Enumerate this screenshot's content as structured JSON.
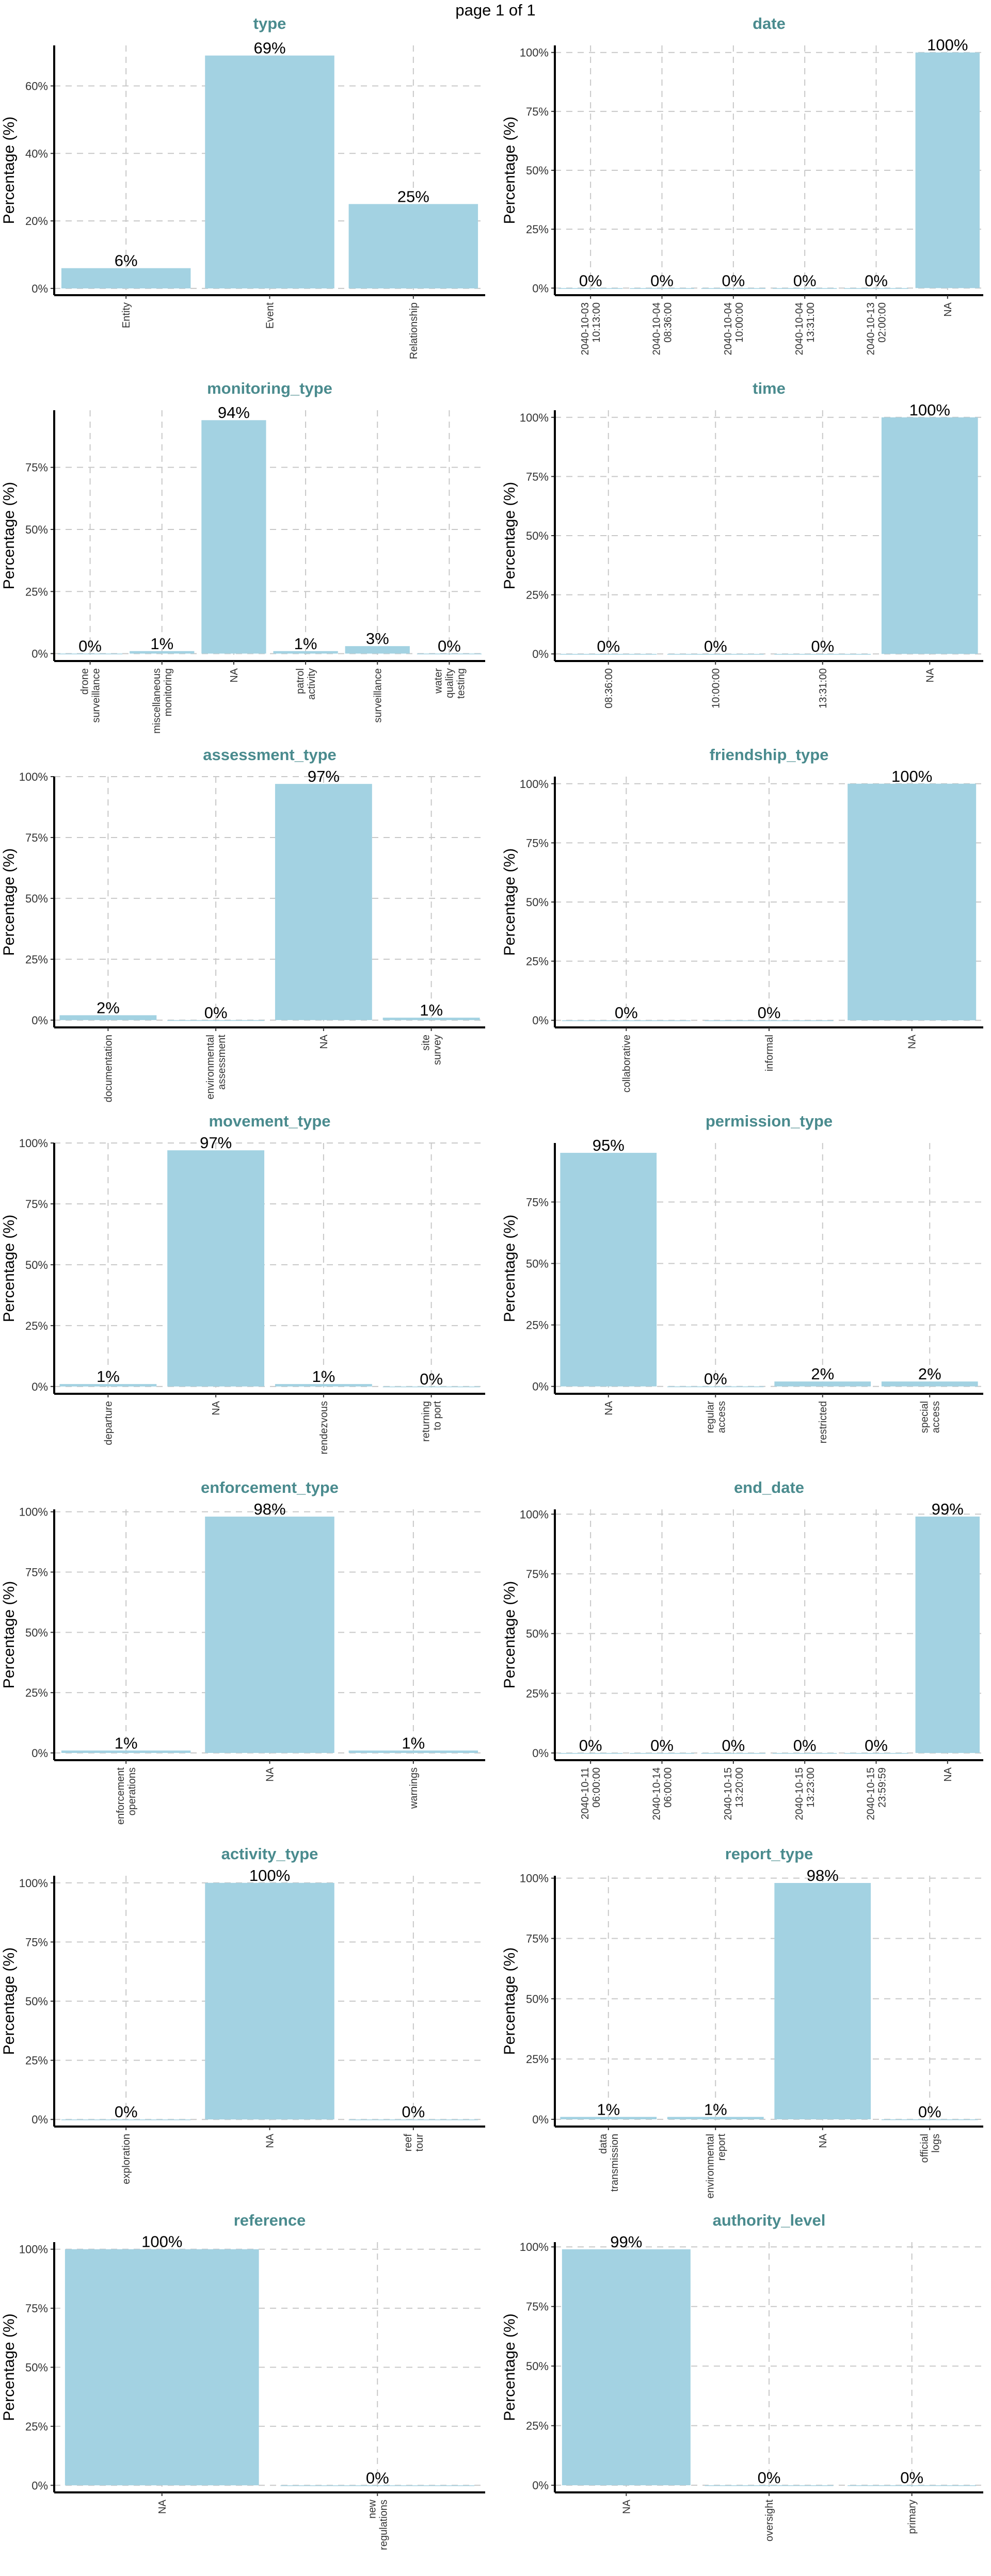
{
  "page_header": "page 1 of 1",
  "style": {
    "bar_color": "#a3d2e2",
    "title_color": "#4a8b8e",
    "grid_color": "#c8c8c8",
    "axis_color": "#000000"
  },
  "chart_data": [
    {
      "type": "bar",
      "title": "type",
      "ylabel": "Percentage (%)",
      "categories": [
        "Entity",
        "Event",
        "Relationship"
      ],
      "values": [
        6,
        69,
        25
      ],
      "labels": [
        "6%",
        "69%",
        "25%"
      ],
      "yticks": [
        0,
        20,
        40,
        60
      ],
      "ytick_labels": [
        "0%",
        "20%",
        "40%",
        "60%"
      ],
      "ylim": [
        -2,
        72
      ]
    },
    {
      "type": "bar",
      "title": "date",
      "ylabel": "Percentage (%)",
      "categories": [
        "2040-10-03\n10:13:00",
        "2040-10-04\n08:36:00",
        "2040-10-04\n10:00:00",
        "2040-10-04\n13:31:00",
        "2040-10-13\n02:00:00",
        "NA"
      ],
      "values": [
        0,
        0,
        0,
        0,
        0,
        100
      ],
      "labels": [
        "0%",
        "0%",
        "0%",
        "0%",
        "0%",
        "100%"
      ],
      "yticks": [
        0,
        25,
        50,
        75,
        100
      ],
      "ytick_labels": [
        "0%",
        "25%",
        "50%",
        "75%",
        "100%"
      ],
      "ylim": [
        -3,
        103
      ]
    },
    {
      "type": "bar",
      "title": "monitoring_type",
      "ylabel": "Percentage (%)",
      "categories": [
        "drone\nsurveillance",
        "miscellaneous\nmonitoring",
        "NA",
        "patrol\nactivity",
        "surveillance",
        "water\nquality\ntesting"
      ],
      "values": [
        0,
        1,
        94,
        1,
        3,
        0
      ],
      "labels": [
        "0%",
        "1%",
        "94%",
        "1%",
        "3%",
        "0%"
      ],
      "yticks": [
        0,
        25,
        50,
        75
      ],
      "ytick_labels": [
        "0%",
        "25%",
        "50%",
        "75%"
      ],
      "ylim": [
        -3,
        98
      ]
    },
    {
      "type": "bar",
      "title": "time",
      "ylabel": "Percentage (%)",
      "categories": [
        "08:36:00",
        "10:00:00",
        "13:31:00",
        "NA"
      ],
      "values": [
        0,
        0,
        0,
        100
      ],
      "labels": [
        "0%",
        "0%",
        "0%",
        "100%"
      ],
      "yticks": [
        0,
        25,
        50,
        75,
        100
      ],
      "ytick_labels": [
        "0%",
        "25%",
        "50%",
        "75%",
        "100%"
      ],
      "ylim": [
        -3,
        103
      ]
    },
    {
      "type": "bar",
      "title": "assessment_type",
      "ylabel": "Percentage (%)",
      "categories": [
        "documentation",
        "environmental\nassessment",
        "NA",
        "site\nsurvey"
      ],
      "values": [
        2,
        0,
        97,
        1
      ],
      "labels": [
        "2%",
        "0%",
        "97%",
        "1%"
      ],
      "yticks": [
        0,
        25,
        50,
        75,
        100
      ],
      "ytick_labels": [
        "0%",
        "25%",
        "50%",
        "75%",
        "100%"
      ],
      "ylim": [
        -3,
        100
      ]
    },
    {
      "type": "bar",
      "title": "friendship_type",
      "ylabel": "Percentage (%)",
      "categories": [
        "collaborative",
        "informal",
        "NA"
      ],
      "values": [
        0,
        0,
        100
      ],
      "labels": [
        "0%",
        "0%",
        "100%"
      ],
      "yticks": [
        0,
        25,
        50,
        75,
        100
      ],
      "ytick_labels": [
        "0%",
        "25%",
        "50%",
        "75%",
        "100%"
      ],
      "ylim": [
        -3,
        103
      ]
    },
    {
      "type": "bar",
      "title": "movement_type",
      "ylabel": "Percentage (%)",
      "categories": [
        "departure",
        "NA",
        "rendezvous",
        "returning\nto port"
      ],
      "values": [
        1,
        97,
        1,
        0
      ],
      "labels": [
        "1%",
        "97%",
        "1%",
        "0%"
      ],
      "yticks": [
        0,
        25,
        50,
        75,
        100
      ],
      "ytick_labels": [
        "0%",
        "25%",
        "50%",
        "75%",
        "100%"
      ],
      "ylim": [
        -3,
        100
      ]
    },
    {
      "type": "bar",
      "title": "permission_type",
      "ylabel": "Percentage (%)",
      "categories": [
        "NA",
        "regular\naccess",
        "restricted",
        "special\naccess"
      ],
      "values": [
        95,
        0,
        2,
        2
      ],
      "labels": [
        "95%",
        "0%",
        "2%",
        "2%"
      ],
      "yticks": [
        0,
        25,
        50,
        75
      ],
      "ytick_labels": [
        "0%",
        "25%",
        "50%",
        "75%"
      ],
      "ylim": [
        -3,
        99
      ]
    },
    {
      "type": "bar",
      "title": "enforcement_type",
      "ylabel": "Percentage (%)",
      "categories": [
        "enforcement\noperations",
        "NA",
        "warnings"
      ],
      "values": [
        1,
        98,
        1
      ],
      "labels": [
        "1%",
        "98%",
        "1%"
      ],
      "yticks": [
        0,
        25,
        50,
        75,
        100
      ],
      "ytick_labels": [
        "0%",
        "25%",
        "50%",
        "75%",
        "100%"
      ],
      "ylim": [
        -3,
        101
      ]
    },
    {
      "type": "bar",
      "title": "end_date",
      "ylabel": "Percentage (%)",
      "categories": [
        "2040-10-11\n06:00:00",
        "2040-10-14\n06:00:00",
        "2040-10-15\n13:20:00",
        "2040-10-15\n13:23:00",
        "2040-10-15\n23:59:59",
        "NA"
      ],
      "values": [
        0,
        0,
        0,
        0,
        0,
        99
      ],
      "labels": [
        "0%",
        "0%",
        "0%",
        "0%",
        "0%",
        "99%"
      ],
      "yticks": [
        0,
        25,
        50,
        75,
        100
      ],
      "ytick_labels": [
        "0%",
        "25%",
        "50%",
        "75%",
        "100%"
      ],
      "ylim": [
        -3,
        102
      ]
    },
    {
      "type": "bar",
      "title": "activity_type",
      "ylabel": "Percentage (%)",
      "categories": [
        "exploration",
        "NA",
        "reef\ntour"
      ],
      "values": [
        0,
        100,
        0
      ],
      "labels": [
        "0%",
        "100%",
        "0%"
      ],
      "yticks": [
        0,
        25,
        50,
        75,
        100
      ],
      "ytick_labels": [
        "0%",
        "25%",
        "50%",
        "75%",
        "100%"
      ],
      "ylim": [
        -3,
        103
      ]
    },
    {
      "type": "bar",
      "title": "report_type",
      "ylabel": "Percentage (%)",
      "categories": [
        "data\ntransmission",
        "environmental\nreport",
        "NA",
        "official\nlogs"
      ],
      "values": [
        1,
        1,
        98,
        0
      ],
      "labels": [
        "1%",
        "1%",
        "98%",
        "0%"
      ],
      "yticks": [
        0,
        25,
        50,
        75,
        100
      ],
      "ytick_labels": [
        "0%",
        "25%",
        "50%",
        "75%",
        "100%"
      ],
      "ylim": [
        -3,
        101
      ]
    },
    {
      "type": "bar",
      "title": "reference",
      "ylabel": "Percentage (%)",
      "categories": [
        "NA",
        "new\nregulations"
      ],
      "values": [
        100,
        0
      ],
      "labels": [
        "100%",
        "0%"
      ],
      "yticks": [
        0,
        25,
        50,
        75,
        100
      ],
      "ytick_labels": [
        "0%",
        "25%",
        "50%",
        "75%",
        "100%"
      ],
      "ylim": [
        -3,
        103
      ]
    },
    {
      "type": "bar",
      "title": "authority_level",
      "ylabel": "Percentage (%)",
      "categories": [
        "NA",
        "oversight",
        "primary"
      ],
      "values": [
        99,
        0,
        0
      ],
      "labels": [
        "99%",
        "0%",
        "0%"
      ],
      "yticks": [
        0,
        25,
        50,
        75,
        100
      ],
      "ytick_labels": [
        "0%",
        "25%",
        "50%",
        "75%",
        "100%"
      ],
      "ylim": [
        -3,
        102
      ]
    }
  ]
}
